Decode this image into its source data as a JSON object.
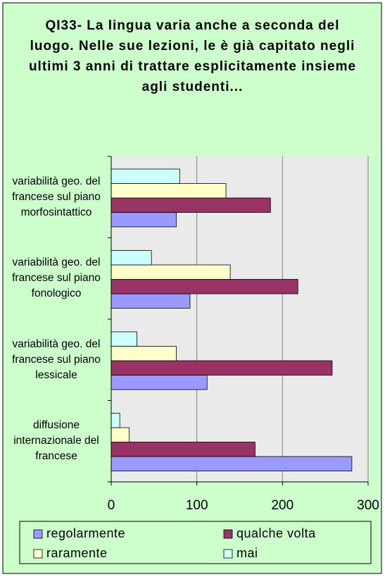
{
  "chart_data": {
    "type": "bar",
    "orientation": "horizontal",
    "title": "QI33- La lingua varia anche a seconda del luogo. Nelle sue lezioni, le è già capitato negli ultimi 3 anni di trattare esplicitamente insieme agli studenti...",
    "categories": [
      "variabilità geo. del francese sul piano morfosintattico",
      "variabilità geo. del francese sul piano fonologico",
      "variabilità geo. del francese sul piano lessicale",
      "diffusione internazionale del francese"
    ],
    "series": [
      {
        "name": "regolarmente",
        "color": "#9999ff",
        "values": [
          76,
          92,
          112,
          281
        ]
      },
      {
        "name": "qualche volta",
        "color": "#993366",
        "values": [
          186,
          218,
          258,
          168
        ]
      },
      {
        "name": "raramente",
        "color": "#ffffcc",
        "values": [
          134,
          139,
          76,
          21
        ]
      },
      {
        "name": "mai",
        "color": "#ccffff",
        "values": [
          80,
          47,
          30,
          10
        ]
      }
    ],
    "xlim": [
      0,
      300
    ],
    "xticks": [
      0,
      100,
      200,
      300
    ],
    "grid": true,
    "legend": "bottom"
  }
}
